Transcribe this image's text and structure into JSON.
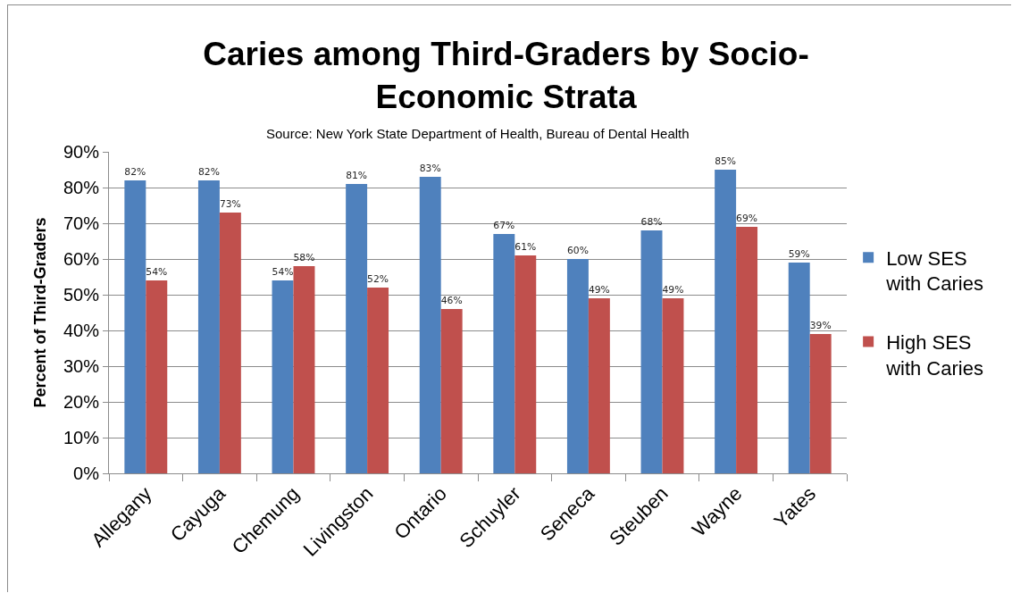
{
  "chart_data": {
    "type": "bar",
    "title": "Caries among Third-Graders by Socio-Economic Strata",
    "ylabel": "Percent of Third-Graders",
    "annotations": [
      "Source: New York State Department of Health, Bureau of Dental Health"
    ],
    "categories": [
      "Allegany",
      "Cayuga",
      "Chemung",
      "Livingston",
      "Ontario",
      "Schuyler",
      "Seneca",
      "Steuben",
      "Wayne",
      "Yates"
    ],
    "series": [
      {
        "name": "Low SES with Caries",
        "color": "#4f81bd",
        "values": [
          82,
          82,
          54,
          81,
          83,
          67,
          60,
          68,
          85,
          59
        ],
        "value_labels": [
          "82%",
          "82%",
          "54%",
          "81%",
          "83%",
          "67%",
          "60%",
          "68%",
          "85%",
          "59%"
        ]
      },
      {
        "name": "High SES with Caries",
        "color": "#c0504d",
        "values": [
          54,
          73,
          58,
          52,
          46,
          61,
          49,
          49,
          69,
          39
        ],
        "value_labels": [
          "54%",
          "73%",
          "58%",
          "52%",
          "46%",
          "61%",
          "49%",
          "49%",
          "69%",
          "39%"
        ]
      }
    ],
    "ylim": [
      0,
      90
    ],
    "yticks": [
      {
        "value": 0,
        "label": "0%"
      },
      {
        "value": 10,
        "label": "10%"
      },
      {
        "value": 20,
        "label": "20%"
      },
      {
        "value": 30,
        "label": "30%"
      },
      {
        "value": 40,
        "label": "40%"
      },
      {
        "value": 50,
        "label": "50%"
      },
      {
        "value": 60,
        "label": "60%"
      },
      {
        "value": 70,
        "label": "70%"
      },
      {
        "value": 80,
        "label": "80%"
      },
      {
        "value": 90,
        "label": "90%"
      }
    ],
    "grid": "y",
    "legend": "right"
  }
}
